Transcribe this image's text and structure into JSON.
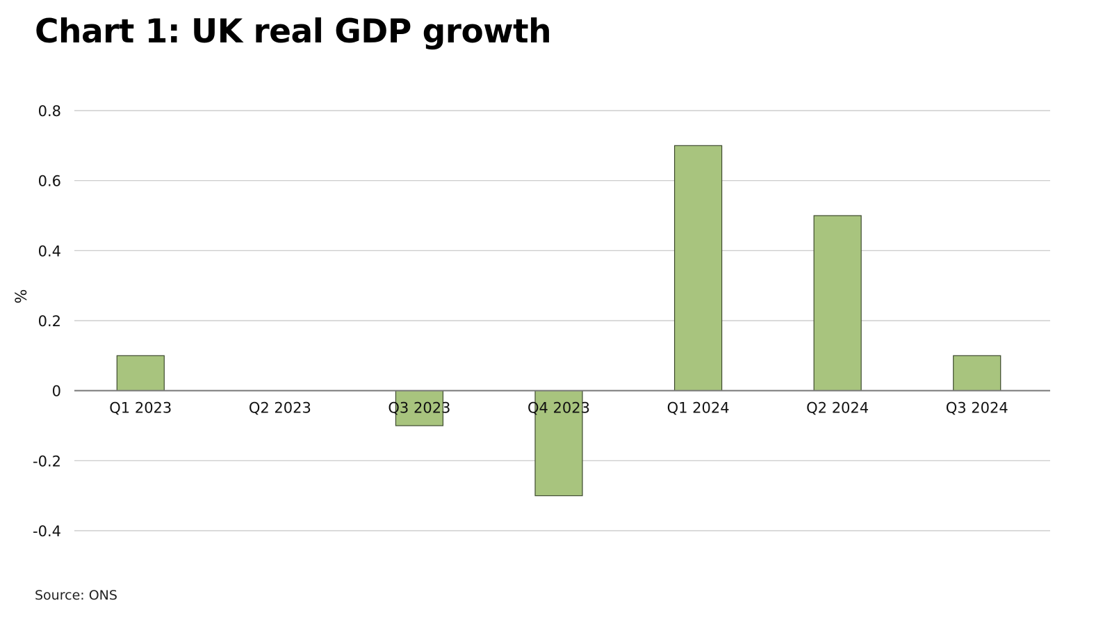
{
  "chart_data": {
    "type": "bar",
    "title": "Chart 1: UK real GDP growth",
    "xlabel": "",
    "ylabel": "%",
    "categories": [
      "Q1 2023",
      "Q2 2023",
      "Q3 2023",
      "Q4 2023",
      "Q1 2024",
      "Q2 2024",
      "Q3 2024"
    ],
    "values": [
      0.1,
      0.0,
      -0.1,
      -0.3,
      0.7,
      0.5,
      0.1
    ],
    "ylim": [
      -0.4,
      0.8
    ],
    "yticks": [
      0.8,
      0.6,
      0.4,
      0.2,
      0,
      -0.2,
      -0.4
    ],
    "ytick_labels": [
      "0.8",
      "0.6",
      "0.4",
      "0.2",
      "0",
      "-0.2",
      "-0.4"
    ],
    "grid": true,
    "legend": "none",
    "bar_color": "#a8c47e",
    "bar_edge_color": "#3d4a2e",
    "source": "Source: ONS"
  }
}
